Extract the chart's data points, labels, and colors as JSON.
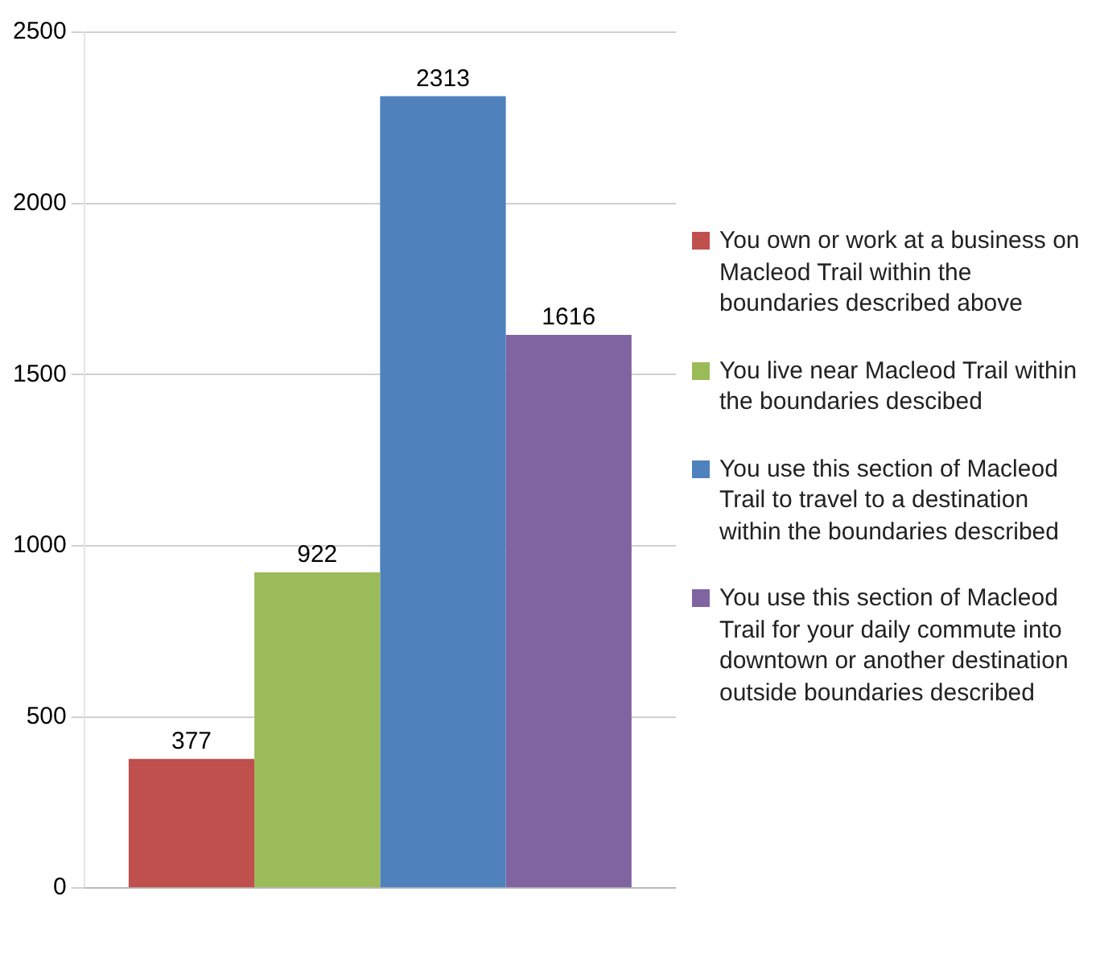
{
  "chart_data": {
    "type": "bar",
    "categories": [
      null
    ],
    "series": [
      {
        "name": "You own or work at a business on Macleod Trail within the boundaries described above",
        "color": "#c0504d",
        "values": [
          377
        ]
      },
      {
        "name": "You live near Macleod Trail within the boundaries descibed",
        "color": "#9bbb59",
        "values": [
          922
        ]
      },
      {
        "name": "You use this section of Macleod Trail to travel to a destination within the boundaries described",
        "color": "#4f81bd",
        "values": [
          2313
        ]
      },
      {
        "name": "You use this section of Macleod Trail for your daily commute into downtown or another destination outside boundaries described",
        "color": "#8064a2",
        "values": [
          1616
        ]
      }
    ],
    "ylim": [
      0,
      2500
    ],
    "yticks": [
      0,
      500,
      1000,
      1500,
      2000,
      2500
    ],
    "grid": "y",
    "legend": "right",
    "data_labels": true
  }
}
